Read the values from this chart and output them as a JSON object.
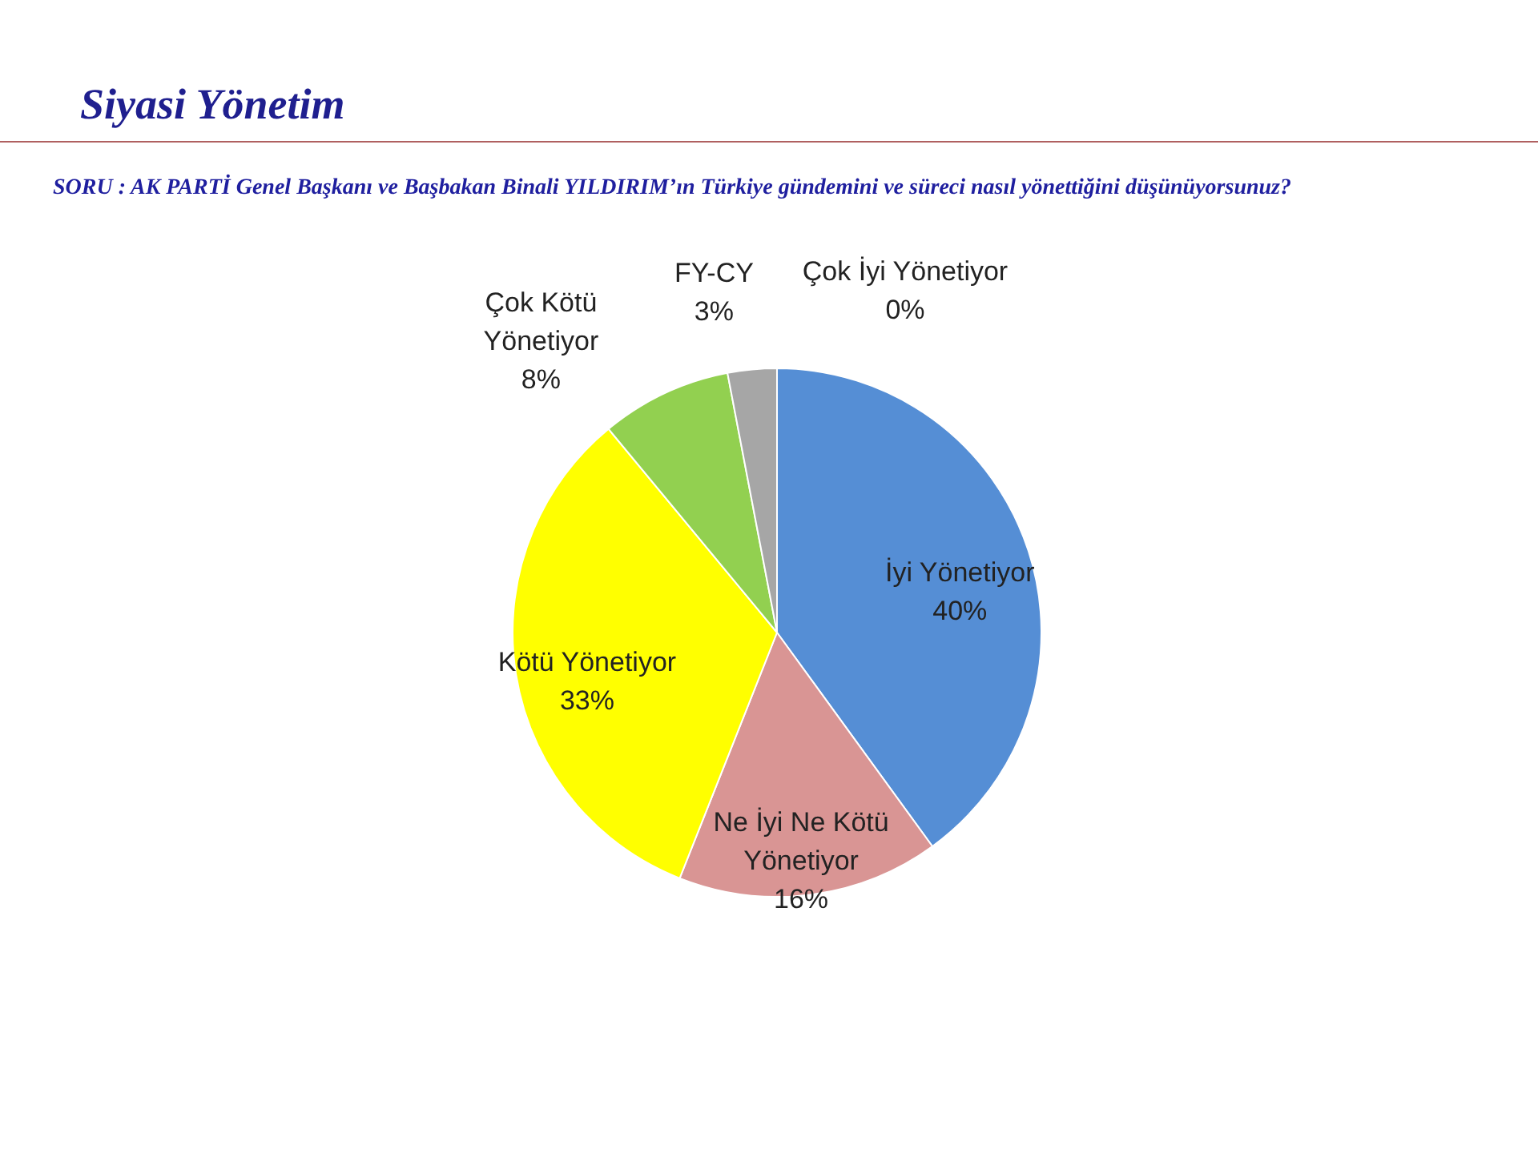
{
  "chart_data": {
    "type": "pie",
    "title": "Siyasi Yönetim",
    "subtitle": "SORU : AK PARTİ Genel Başkanı ve Başbakan Binali YILDIRIM’ın Türkiye gündemini ve süreci nasıl yönettiğini düşünüyorsunuz?",
    "categories": [
      "İyi Yönetiyor",
      "Ne İyi Ne Kötü Yönetiyor",
      "Kötü Yönetiyor",
      "Çok Kötü Yönetiyor",
      "FY-CY",
      "Çok İyi Yönetiyor"
    ],
    "values": [
      40,
      16,
      33,
      8,
      3,
      0
    ],
    "value_labels": [
      "40%",
      "16%",
      "33%",
      "8%",
      "3%",
      "0%"
    ],
    "colors": [
      "#558ed5",
      "#d99594",
      "#ffff00",
      "#92d050",
      "#a6a6a6",
      "#f0b400"
    ]
  }
}
